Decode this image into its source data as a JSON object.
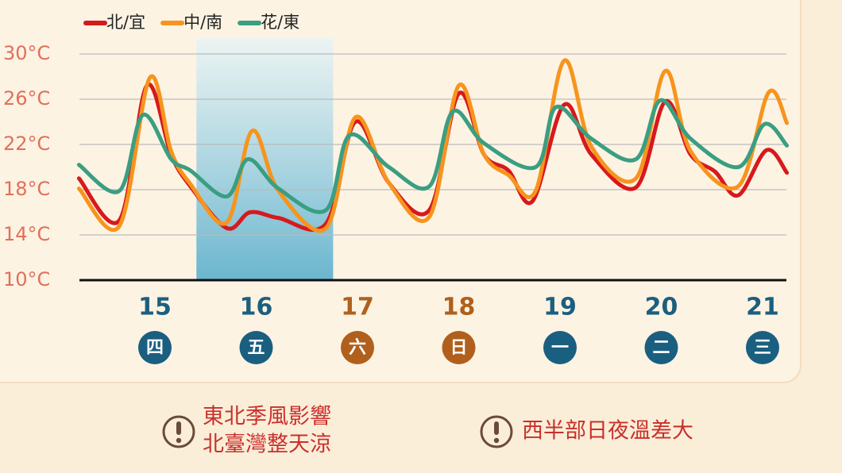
{
  "chart_data": {
    "type": "line",
    "xlim": [
      14.25,
      21.25
    ],
    "ylim": [
      10,
      30
    ],
    "yticks": [
      {
        "value": 10,
        "label": "10°C"
      },
      {
        "value": 14,
        "label": "14°C"
      },
      {
        "value": 18,
        "label": "18°C"
      },
      {
        "value": 22,
        "label": "22°C"
      },
      {
        "value": 26,
        "label": "26°C"
      },
      {
        "value": 30,
        "label": "30°C"
      }
    ],
    "xticks": [
      15,
      16,
      17,
      18,
      19,
      20,
      21
    ],
    "weekdays": [
      "四",
      "五",
      "六",
      "日",
      "一",
      "二",
      "三"
    ],
    "xtick_colors": [
      "#1b5f80",
      "#1b5f80",
      "#b0601c",
      "#b0601c",
      "#1b5f80",
      "#1b5f80",
      "#1b5f80"
    ],
    "grid": true,
    "legend": "top-left",
    "highlight_xrange": [
      15.41,
      16.76
    ],
    "series": [
      {
        "name": "北/宜",
        "color": "#d7191c",
        "x": [
          14.25,
          14.65,
          14.92,
          15.16,
          15.35,
          15.71,
          15.94,
          16.22,
          16.69,
          16.98,
          17.31,
          17.71,
          18.0,
          18.25,
          18.49,
          18.73,
          19.04,
          19.31,
          19.75,
          20.04,
          20.29,
          20.53,
          20.76,
          21.04,
          21.24
        ],
        "values": [
          19.0,
          15.3,
          27.2,
          21.1,
          18.3,
          14.6,
          16.0,
          15.5,
          15.0,
          24.0,
          18.6,
          16.2,
          26.5,
          21.1,
          19.7,
          17.0,
          25.5,
          21.1,
          18.2,
          25.8,
          21.1,
          19.6,
          17.5,
          21.5,
          19.5
        ]
      },
      {
        "name": "中/南",
        "color": "#f7941d",
        "x": [
          14.25,
          14.65,
          14.95,
          15.16,
          15.35,
          15.71,
          15.96,
          16.22,
          16.69,
          16.98,
          17.31,
          17.71,
          18.0,
          18.25,
          18.49,
          18.76,
          19.04,
          19.31,
          19.75,
          20.04,
          20.29,
          20.76,
          21.06,
          21.24
        ],
        "values": [
          18.1,
          14.8,
          27.9,
          21.4,
          18.5,
          15.1,
          23.2,
          17.9,
          14.6,
          24.4,
          18.6,
          15.6,
          27.2,
          21.1,
          19.3,
          17.9,
          29.4,
          21.8,
          19.0,
          28.5,
          21.4,
          18.3,
          26.6,
          23.9
        ]
      },
      {
        "name": "花/東",
        "color": "#3a9e82",
        "x": [
          14.25,
          14.65,
          14.88,
          15.16,
          15.35,
          15.71,
          15.92,
          16.22,
          16.69,
          16.92,
          17.31,
          17.71,
          17.94,
          18.25,
          18.76,
          18.96,
          19.31,
          19.75,
          19.99,
          20.29,
          20.76,
          21.02,
          21.24
        ],
        "values": [
          20.2,
          17.9,
          24.6,
          20.7,
          19.7,
          17.4,
          20.7,
          18.1,
          16.2,
          22.8,
          20.0,
          18.3,
          24.9,
          22.1,
          20.0,
          25.3,
          22.5,
          20.7,
          25.9,
          22.5,
          20.0,
          23.8,
          21.9
        ]
      }
    ]
  },
  "notes": [
    {
      "lines": [
        "東北季風影響",
        "北臺灣整天涼"
      ]
    },
    {
      "lines": [
        "西半部日夜溫差大"
      ]
    }
  ]
}
